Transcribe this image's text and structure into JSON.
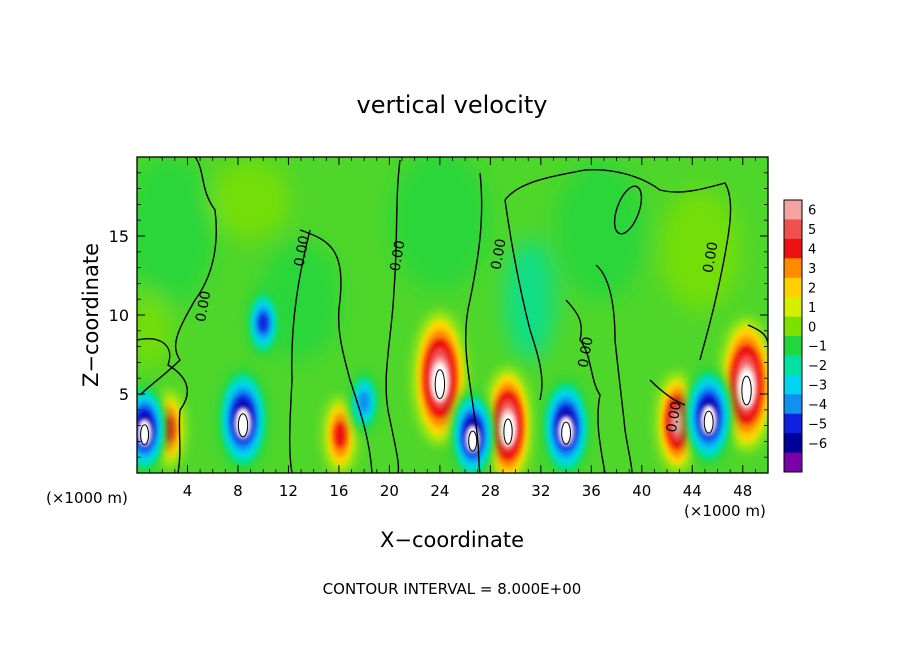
{
  "chart_data": {
    "type": "heatmap",
    "title": "vertical velocity",
    "xlabel": "X−coordinate",
    "ylabel": "Z−coordinate",
    "x_unit_left": "(×1000 m)",
    "x_unit_right": "(×1000 m)",
    "footer": "CONTOUR INTERVAL = 8.000E+00",
    "xlim": [
      0,
      50
    ],
    "ylim": [
      0,
      20
    ],
    "x_ticks": [
      4,
      8,
      12,
      16,
      20,
      24,
      28,
      32,
      36,
      40,
      44,
      48
    ],
    "x_tick_labels": [
      "4",
      "8",
      "12",
      "16",
      "20",
      "24",
      "28",
      "32",
      "36",
      "40",
      "44",
      "48"
    ],
    "y_ticks": [
      5,
      10,
      15
    ],
    "y_tick_labels": [
      "5",
      "10",
      "15"
    ],
    "colorbar": {
      "levels": [
        6,
        5,
        4,
        3,
        2,
        1,
        0,
        -1,
        -2,
        -3,
        -4,
        -5,
        -6
      ],
      "labels": [
        "6",
        "5",
        "4",
        "3",
        "2",
        "1",
        "0",
        "−1",
        "−2",
        "−3",
        "−4",
        "−5",
        "−6"
      ],
      "colors": [
        "#f4a3a3",
        "#f25050",
        "#ee1111",
        "#ff8a00",
        "#ffd000",
        "#d4f000",
        "#7de000",
        "#22d640",
        "#00e0a0",
        "#00d4f0",
        "#1090f0",
        "#1020e0",
        "#00009a",
        "#7a00a8"
      ]
    },
    "contour_labels": [
      {
        "text": "0.00",
        "x": 5.6,
        "z": 10.5
      },
      {
        "text": "0.00",
        "x": 13.4,
        "z": 14.0
      },
      {
        "text": "0.00",
        "x": 21.0,
        "z": 13.7
      },
      {
        "text": "0.00",
        "x": 29.0,
        "z": 13.8
      },
      {
        "text": "0.00",
        "x": 35.9,
        "z": 7.6
      },
      {
        "text": "0.00",
        "x": 42.9,
        "z": 3.5
      },
      {
        "text": "0.00",
        "x": 45.8,
        "z": 13.6
      }
    ],
    "features": [
      {
        "sign": "positive",
        "x": 24.0,
        "z": 6.0,
        "peak": 9
      },
      {
        "sign": "positive",
        "x": 48.3,
        "z": 5.6,
        "peak": 9
      },
      {
        "sign": "positive",
        "x": 29.4,
        "z": 3.0,
        "peak": 7.5
      },
      {
        "sign": "positive",
        "x": 42.8,
        "z": 3.2,
        "peak": 6
      },
      {
        "sign": "positive",
        "x": 16.1,
        "z": 2.4,
        "peak": 4
      },
      {
        "sign": "positive",
        "x": 2.5,
        "z": 2.8,
        "peak": 4
      },
      {
        "sign": "negative",
        "x": 8.4,
        "z": 3.4,
        "peak": -8.5
      },
      {
        "sign": "negative",
        "x": 10.0,
        "z": 9.5,
        "peak": -4.5
      },
      {
        "sign": "negative",
        "x": 34.0,
        "z": 2.9,
        "peak": -8
      },
      {
        "sign": "negative",
        "x": 26.6,
        "z": 2.4,
        "peak": -7
      },
      {
        "sign": "negative",
        "x": 45.3,
        "z": 3.6,
        "peak": -8
      },
      {
        "sign": "negative",
        "x": 0.6,
        "z": 2.8,
        "peak": -7
      },
      {
        "sign": "negative",
        "x": 18.0,
        "z": 4.5,
        "peak": -4
      }
    ]
  }
}
